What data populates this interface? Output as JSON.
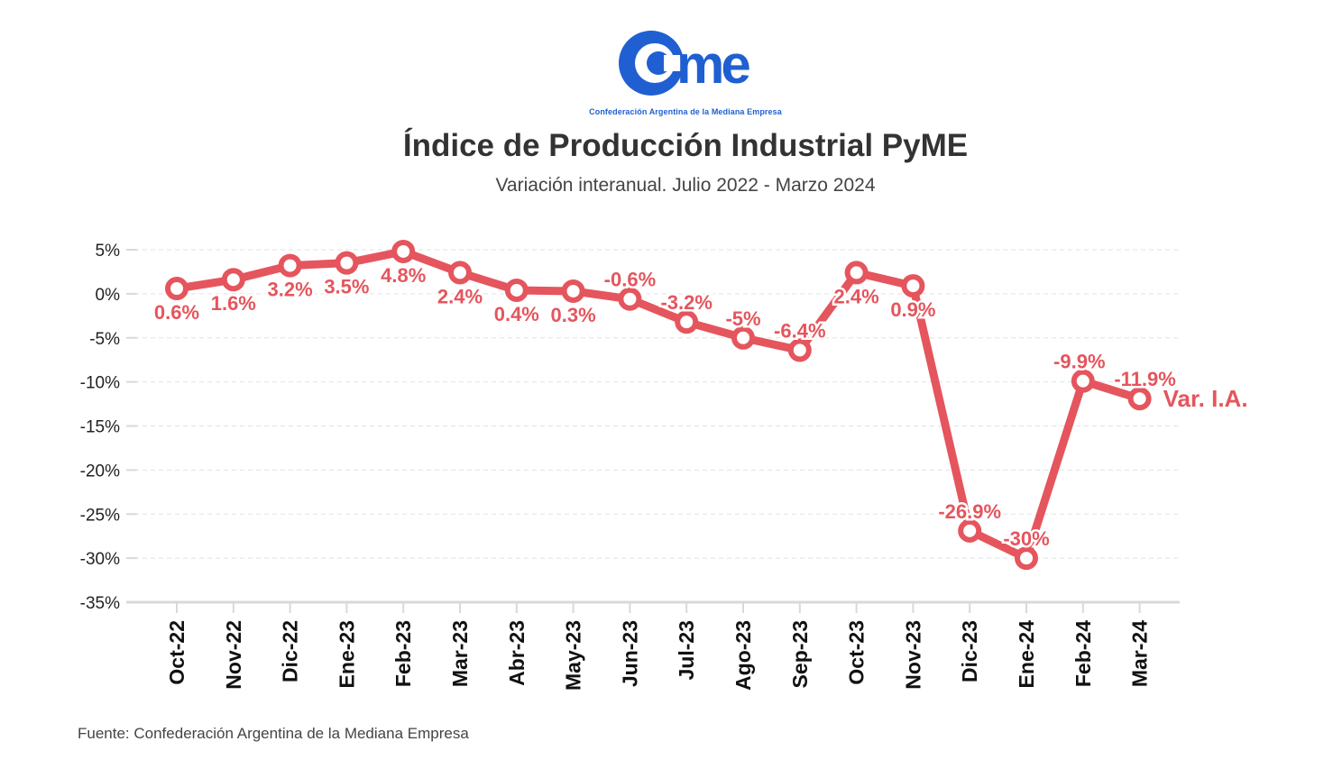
{
  "logo": {
    "wordmark": "cme",
    "caption": "Confederación Argentina de la Mediana Empresa",
    "color": "#1f5fd1"
  },
  "chart_data": {
    "type": "line",
    "title": "Índice de Producción Industrial PyME",
    "subtitle": "Variación interanual. Julio 2022 - Marzo 2024",
    "categories": [
      "Oct-22",
      "Nov-22",
      "Dic-22",
      "Ene-23",
      "Feb-23",
      "Mar-23",
      "Abr-23",
      "May-23",
      "Jun-23",
      "Jul-23",
      "Ago-23",
      "Sep-23",
      "Oct-23",
      "Nov-23",
      "Dic-23",
      "Ene-24",
      "Feb-24",
      "Mar-24"
    ],
    "series": [
      {
        "name": "Var. I.A.",
        "color": "#e5555d",
        "values": [
          0.6,
          1.6,
          3.2,
          3.5,
          4.8,
          2.4,
          0.4,
          0.3,
          -0.6,
          -3.2,
          -5,
          -6.4,
          2.4,
          0.9,
          -26.9,
          -30,
          -9.9,
          -11.9
        ],
        "labels": [
          "0.6%",
          "1.6%",
          "3.2%",
          "3.5%",
          "4.8%",
          "2.4%",
          "0.4%",
          "0.3%",
          "-0.6%",
          "-3.2%",
          "-5%",
          "-6.4%",
          "2.4%",
          "0.9%",
          "-26.9%",
          "-30%",
          "-9.9%",
          "-11.9%"
        ]
      }
    ],
    "ylim": [
      -35,
      5
    ],
    "yticks": [
      5,
      0,
      -5,
      -10,
      -15,
      -20,
      -25,
      -30,
      -35
    ],
    "ytick_labels": [
      "5%",
      "0%",
      "-5%",
      "-10%",
      "-15%",
      "-20%",
      "-25%",
      "-30%",
      "-35%"
    ],
    "xlabel": "",
    "ylabel": "",
    "grid": true,
    "legend": "end-of-line label"
  },
  "source": "Fuente: Confederación Argentina de la Mediana Empresa"
}
